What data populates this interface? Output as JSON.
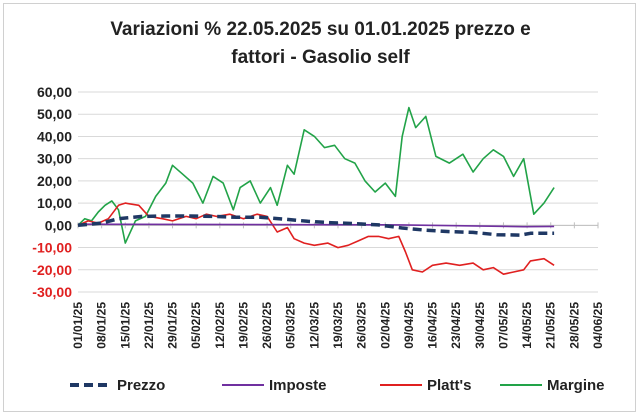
{
  "chart_data": {
    "type": "line",
    "title_line1": "Variazioni % 22.05.2025 su 01.01.2025 prezzo e",
    "title_line2": "fattori - Gasolio self",
    "ylim": [
      -30,
      60
    ],
    "yticks": [
      "60,00",
      "50,00",
      "40,00",
      "30,00",
      "20,00",
      "10,00",
      "0,00",
      "-10,00",
      "-20,00",
      "-30,00"
    ],
    "xticks": [
      "01/01/25",
      "08/01/25",
      "15/01/25",
      "22/01/25",
      "29/01/25",
      "05/02/25",
      "12/02/25",
      "19/02/25",
      "26/02/25",
      "05/03/25",
      "12/03/25",
      "19/03/25",
      "26/03/25",
      "02/04/25",
      "09/04/25",
      "16/04/25",
      "23/04/25",
      "30/04/25",
      "07/05/25",
      "14/05/25",
      "21/05/25",
      "28/05/25",
      "04/06/25"
    ],
    "x_start": "2025-01-01",
    "x_end": "2025-06-04",
    "grid": true,
    "legend_position": "bottom",
    "series": [
      {
        "name": "Prezzo",
        "color": "#1f3864",
        "style": "dashed",
        "x": [
          "2025-01-01",
          "2025-01-08",
          "2025-01-13",
          "2025-01-20",
          "2025-01-27",
          "2025-02-03",
          "2025-02-10",
          "2025-02-17",
          "2025-02-24",
          "2025-03-03",
          "2025-03-10",
          "2025-03-17",
          "2025-03-24",
          "2025-03-31",
          "2025-04-07",
          "2025-04-14",
          "2025-04-21",
          "2025-04-28",
          "2025-05-05",
          "2025-05-12",
          "2025-05-15",
          "2025-05-22"
        ],
        "values": [
          0,
          1,
          3,
          4,
          4.2,
          4.2,
          4,
          3.6,
          3.6,
          2.8,
          1.8,
          1.2,
          0.8,
          0.2,
          -1.2,
          -2.2,
          -2.8,
          -3.2,
          -4.2,
          -4.4,
          -3.6,
          -3.6
        ]
      },
      {
        "name": "Imposte",
        "color": "#7030a0",
        "style": "solid",
        "x": [
          "2025-01-01",
          "2025-04-07",
          "2025-05-13",
          "2025-05-22"
        ],
        "values": [
          0.5,
          0.2,
          -0.6,
          -0.5
        ]
      },
      {
        "name": "Platt's",
        "color": "#e02020",
        "style": "solid",
        "x": [
          "2025-01-01",
          "2025-01-04",
          "2025-01-07",
          "2025-01-10",
          "2025-01-13",
          "2025-01-15",
          "2025-01-19",
          "2025-01-22",
          "2025-01-26",
          "2025-01-29",
          "2025-02-02",
          "2025-02-05",
          "2025-02-08",
          "2025-02-11",
          "2025-02-15",
          "2025-02-19",
          "2025-02-23",
          "2025-02-26",
          "2025-03-01",
          "2025-03-04",
          "2025-03-06",
          "2025-03-09",
          "2025-03-12",
          "2025-03-16",
          "2025-03-19",
          "2025-03-22",
          "2025-03-25",
          "2025-03-28",
          "2025-03-31",
          "2025-04-03",
          "2025-04-06",
          "2025-04-08",
          "2025-04-10",
          "2025-04-13",
          "2025-04-16",
          "2025-04-20",
          "2025-04-24",
          "2025-04-28",
          "2025-05-01",
          "2025-05-04",
          "2025-05-07",
          "2025-05-10",
          "2025-05-13",
          "2025-05-15",
          "2025-05-19",
          "2025-05-22"
        ],
        "values": [
          0,
          2,
          1,
          3,
          9,
          10,
          9,
          4,
          3,
          2,
          4,
          3,
          5,
          4,
          5,
          3,
          5,
          4,
          -3,
          -1,
          -6,
          -8,
          -9,
          -8,
          -10,
          -9,
          -7,
          -5,
          -5,
          -6,
          -5,
          -12,
          -20,
          -21,
          -18,
          -17,
          -18,
          -17,
          -20,
          -19,
          -22,
          -21,
          -20,
          -16,
          -15,
          -18
        ]
      },
      {
        "name": "Margine",
        "color": "#22a348",
        "style": "solid",
        "x": [
          "2025-01-01",
          "2025-01-03",
          "2025-01-05",
          "2025-01-07",
          "2025-01-09",
          "2025-01-11",
          "2025-01-13",
          "2025-01-15",
          "2025-01-18",
          "2025-01-21",
          "2025-01-24",
          "2025-01-27",
          "2025-01-29",
          "2025-02-01",
          "2025-02-04",
          "2025-02-07",
          "2025-02-10",
          "2025-02-13",
          "2025-02-16",
          "2025-02-18",
          "2025-02-21",
          "2025-02-24",
          "2025-02-27",
          "2025-03-01",
          "2025-03-04",
          "2025-03-06",
          "2025-03-09",
          "2025-03-12",
          "2025-03-15",
          "2025-03-18",
          "2025-03-21",
          "2025-03-24",
          "2025-03-27",
          "2025-03-30",
          "2025-04-02",
          "2025-04-05",
          "2025-04-07",
          "2025-04-09",
          "2025-04-11",
          "2025-04-14",
          "2025-04-17",
          "2025-04-21",
          "2025-04-25",
          "2025-04-28",
          "2025-05-01",
          "2025-05-04",
          "2025-05-07",
          "2025-05-10",
          "2025-05-13",
          "2025-05-16",
          "2025-05-19",
          "2025-05-22"
        ],
        "values": [
          0,
          3,
          2,
          6,
          9,
          11,
          7,
          -8,
          2,
          4,
          13,
          19,
          27,
          23,
          19,
          10,
          22,
          19,
          7,
          17,
          20,
          10,
          17,
          9,
          27,
          23,
          43,
          40,
          35,
          36,
          30,
          28,
          20,
          15,
          19,
          13,
          40,
          53,
          44,
          49,
          31,
          28,
          32,
          24,
          30,
          34,
          31,
          22,
          30,
          5,
          10,
          17
        ]
      }
    ]
  }
}
